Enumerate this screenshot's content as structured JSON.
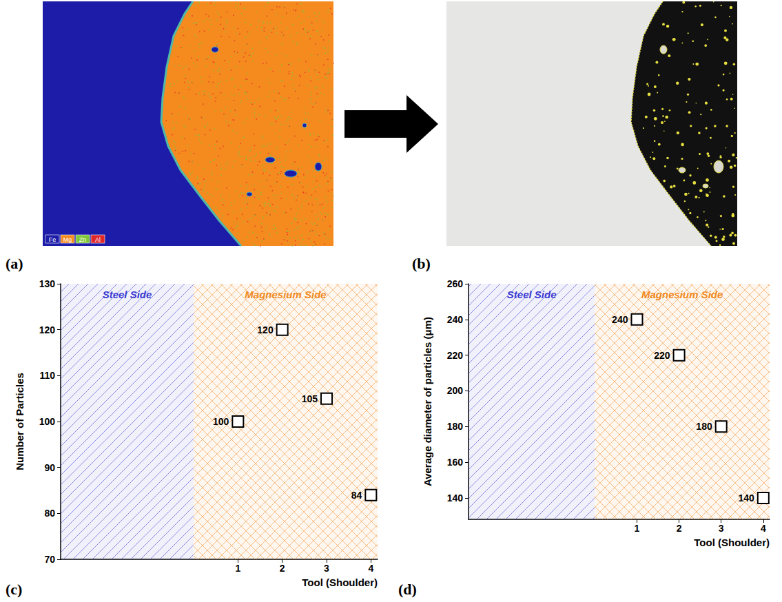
{
  "panels": [
    {
      "label": "(a)",
      "type": "image",
      "legend": [
        {
          "label": "Fe",
          "color": "#1c1ca8"
        },
        {
          "label": "Mg",
          "color": "#f58a1f"
        },
        {
          "label": "Zn",
          "color": "#7ec83a"
        },
        {
          "label": "Al",
          "color": "#e0282a"
        }
      ]
    },
    {
      "label": "(b)",
      "type": "image"
    }
  ],
  "chart_data": [
    {
      "type": "scatter",
      "label": "(c)",
      "xlabel": "Tool (Shoulder)",
      "ylabel": "Number of Particles",
      "x": [
        1,
        2,
        3,
        4
      ],
      "values": [
        100,
        120,
        105,
        84
      ],
      "color": "#000000",
      "marker": "square",
      "data_labels": true,
      "xlim": [
        -3,
        4.15
      ],
      "xticks": [
        1,
        2,
        3,
        4
      ],
      "ylim": [
        70,
        130
      ],
      "yticks": [
        70,
        80,
        90,
        100,
        110,
        120,
        130
      ],
      "grid": false,
      "regions": [
        {
          "label": "Steel Side",
          "from": -3,
          "to": 0,
          "color": "#3a3ad0"
        },
        {
          "label": "Magnesium Side",
          "from": 0,
          "to": 4.15,
          "color": "#f08a24"
        }
      ]
    },
    {
      "type": "scatter",
      "label": "(d)",
      "xlabel": "Tool (Shoulder)",
      "ylabel": "Average diameter of particles (μm)",
      "x": [
        1,
        2,
        3,
        4
      ],
      "values": [
        240,
        220,
        180,
        140
      ],
      "color": "#000000",
      "marker": "square",
      "data_labels": true,
      "xlim": [
        -3,
        4.15
      ],
      "xticks": [
        1,
        2,
        3,
        4
      ],
      "ylim": [
        128,
        260
      ],
      "yticks": [
        140,
        160,
        180,
        200,
        220,
        240,
        260
      ],
      "grid": false,
      "regions": [
        {
          "label": "Steel Side",
          "from": -3,
          "to": 0,
          "color": "#3a3ad0"
        },
        {
          "label": "Magnesium Side",
          "from": 0,
          "to": 4.15,
          "color": "#f08a24"
        }
      ]
    }
  ]
}
